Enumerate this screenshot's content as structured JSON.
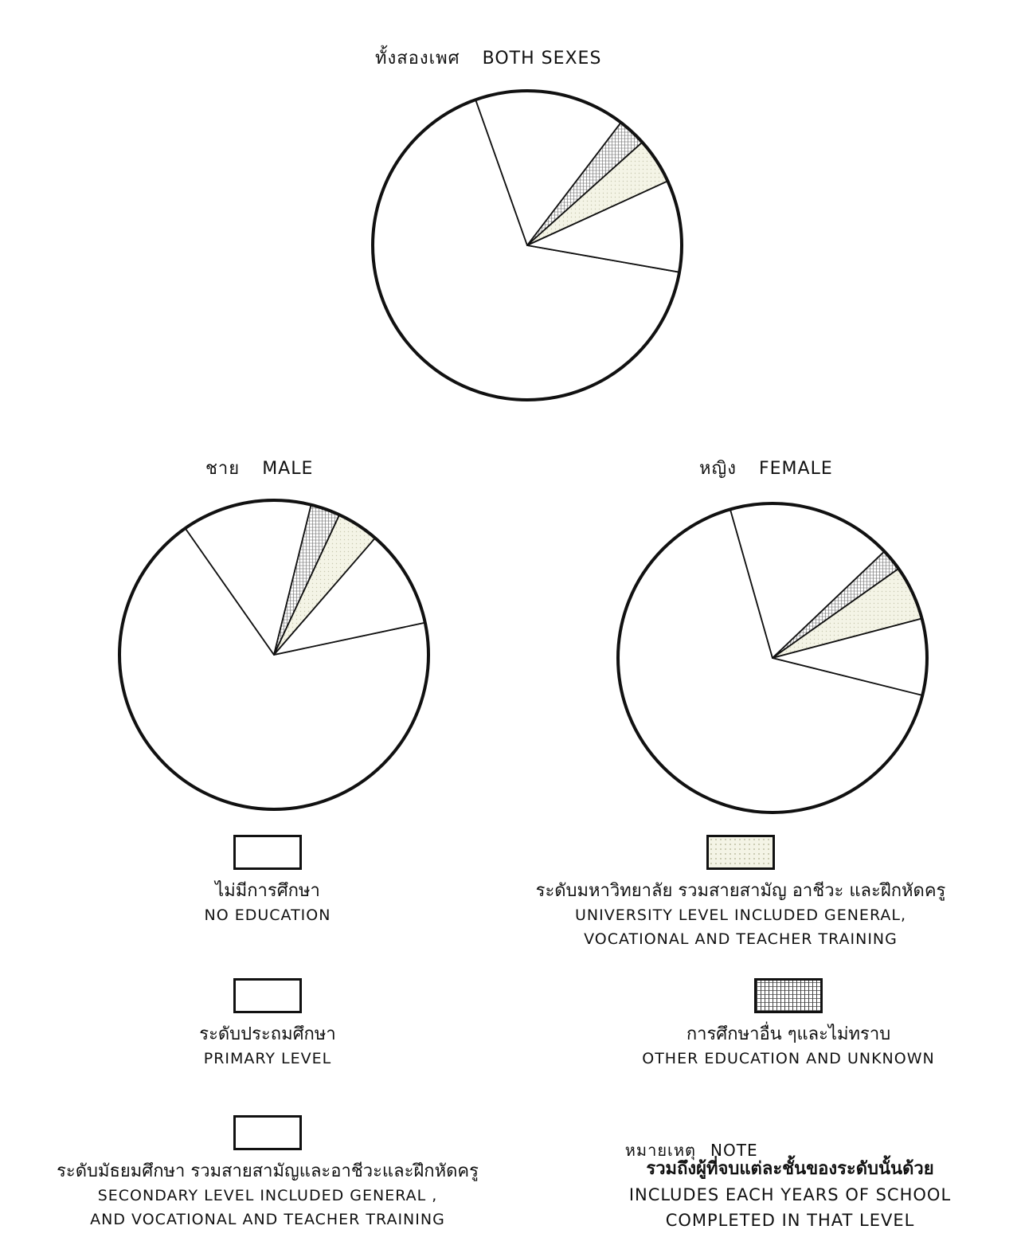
{
  "titles": {
    "both": {
      "th": "ทั้งสองเพศ",
      "en": "BOTH SEXES"
    },
    "male": {
      "th": "ชาย",
      "en": "MALE"
    },
    "female": {
      "th": "หญิง",
      "en": "FEMALE"
    }
  },
  "chart_data": [
    {
      "type": "pie",
      "title": "ทั้งสองเพศ BOTH SEXES",
      "categories": [
        "No education",
        "Primary level",
        "Secondary level",
        "University level",
        "Other education and unknown"
      ],
      "values": [
        15.8,
        66.8,
        9.6,
        4.8,
        3.0
      ]
    },
    {
      "type": "pie",
      "title": "ชาย MALE",
      "categories": [
        "No education",
        "Primary level",
        "Secondary level",
        "University level",
        "Other education and unknown"
      ],
      "values": [
        13.6,
        68.6,
        10.3,
        4.4,
        3.1
      ]
    },
    {
      "type": "pie",
      "title": "หญิง FEMALE",
      "categories": [
        "No education",
        "Primary level",
        "Secondary level",
        "University level",
        "Other education and unknown"
      ],
      "values": [
        17.3,
        66.7,
        8.0,
        5.7,
        2.3
      ]
    }
  ],
  "colors": {
    "none": "#ffffff",
    "primary": "#ffffff",
    "secondary": "#ffffff",
    "university": "#f4f4e6",
    "other": "#dcdcdc",
    "outline": "#111111"
  },
  "legend": {
    "no_education": {
      "th": "ไม่มีการศึกษา",
      "en": "NO EDUCATION"
    },
    "primary": {
      "th": "ระดับประถมศึกษา",
      "en": "PRIMARY LEVEL"
    },
    "secondary": {
      "th": "ระดับมัธยมศึกษา รวมสายสามัญและอาชีวะและฝึกหัดครู",
      "en1": "SECONDARY LEVEL INCLUDED GENERAL ,",
      "en2": "AND VOCATIONAL AND TEACHER TRAINING"
    },
    "university": {
      "th": "ระดับมหาวิทยาลัย รวมสายสามัญ อาชีวะ และฝึกหัดครู",
      "en1": "UNIVERSITY LEVEL INCLUDED GENERAL,",
      "en2": "VOCATIONAL AND TEACHER TRAINING"
    },
    "other": {
      "th": "การศึกษาอื่น ๆและไม่ทราบ",
      "en": "OTHER EDUCATION AND UNKNOWN"
    }
  },
  "note": {
    "head_th": "หมายเหตุ",
    "head_en": "NOTE",
    "th": "รวมถึงผู้ที่จบแต่ละชั้นของระดับนั้นด้วย",
    "en1": "INCLUDES EACH YEARS OF SCHOOL",
    "en2": "COMPLETED IN THAT LEVEL"
  }
}
